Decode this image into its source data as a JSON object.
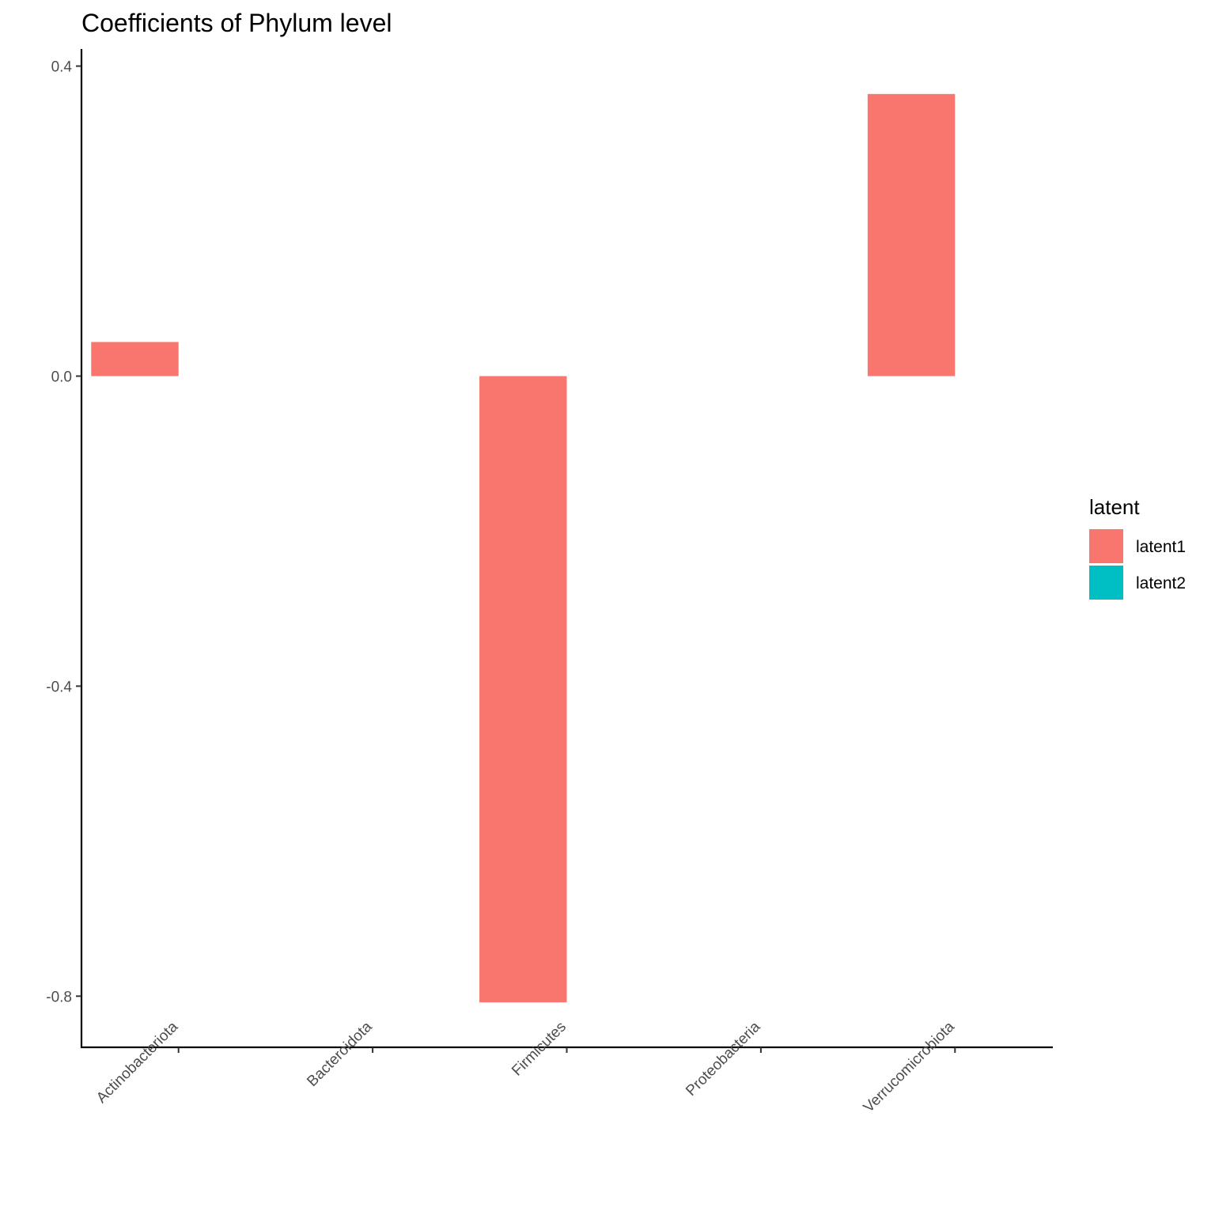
{
  "chart_data": {
    "type": "bar",
    "title": "Coefficients of Phylum level",
    "xlabel": "",
    "ylabel": "",
    "categories": [
      "Actinobacteriota",
      "Bacteroidota",
      "Firmicutes",
      "Proteobacteria",
      "Verrucomicrobiota"
    ],
    "series": [
      {
        "name": "latent1",
        "color": "#F8766D",
        "values": [
          0.044,
          0,
          -0.808,
          0,
          0.364
        ]
      },
      {
        "name": "latent2",
        "color": "#00BFC4",
        "values": [
          0,
          0,
          0,
          0,
          0
        ]
      }
    ],
    "ylim": [
      -0.866,
      0.422
    ],
    "yticks": [
      0.4,
      0.0,
      -0.4,
      -0.8
    ],
    "ytick_labels": [
      "0.4",
      "0.0",
      "-0.4",
      "-0.8"
    ],
    "grid": false,
    "legend": {
      "title": "latent",
      "placement": "right"
    }
  }
}
